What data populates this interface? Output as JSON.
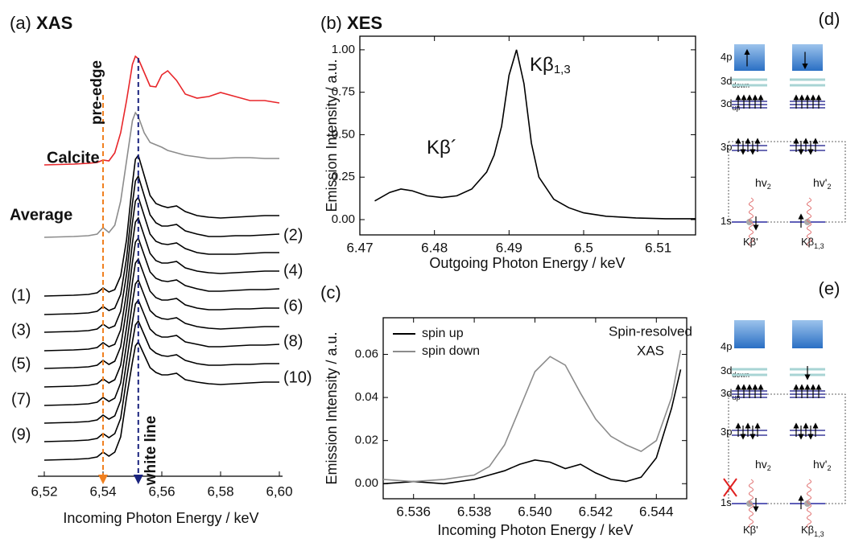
{
  "chart_data": [
    {
      "type": "line",
      "panel_label": "(a)",
      "title": "XAS",
      "xlabel": "Incoming Photon Energy / keV",
      "xlim": [
        6.52,
        6.6
      ],
      "xticks": [
        {
          "value": 6.52,
          "label": "6,52"
        },
        {
          "value": 6.54,
          "label": "6,54"
        },
        {
          "value": 6.56,
          "label": "6,56"
        },
        {
          "value": 6.58,
          "label": "6,58"
        },
        {
          "value": 6.6,
          "label": "6,60"
        }
      ],
      "x": [
        6.52,
        6.53,
        6.535,
        6.538,
        6.54,
        6.542,
        6.544,
        6.546,
        6.548,
        6.55,
        6.551,
        6.552,
        6.554,
        6.556,
        6.558,
        6.56,
        6.562,
        6.565,
        6.568,
        6.572,
        6.576,
        6.58,
        6.585,
        6.59,
        6.595,
        6.6
      ],
      "series": [
        {
          "name": "Calcite",
          "color": "#e8262a",
          "values": [
            0,
            0.01,
            0.02,
            0.03,
            0.06,
            0.05,
            0.15,
            0.4,
            0.8,
            1.25,
            1.35,
            1.32,
            1.15,
            0.98,
            0.97,
            1.12,
            1.17,
            1.05,
            0.88,
            0.83,
            0.85,
            0.9,
            0.85,
            0.8,
            0.8,
            0.77
          ]
        },
        {
          "name": "Average",
          "color": "#8c8c8c",
          "values": [
            0,
            0.01,
            0.02,
            0.04,
            0.12,
            0.06,
            0.15,
            0.45,
            0.95,
            1.45,
            1.55,
            1.5,
            1.3,
            1.18,
            1.15,
            1.12,
            1.08,
            1.05,
            1.02,
            1.0,
            0.98,
            0.98,
            0.99,
            0.99,
            0.98,
            0.98
          ]
        },
        {
          "name": "(1)",
          "color": "#000000",
          "values": [
            0,
            0.01,
            0.02,
            0.04,
            0.1,
            0.05,
            0.08,
            0.25,
            0.7,
            1.4,
            1.7,
            1.75,
            1.5,
            1.25,
            1.15,
            1.12,
            1.1,
            1.12,
            1.05,
            1.0,
            0.98,
            0.97,
            0.98,
            0.99,
            1.0,
            1.0
          ]
        },
        {
          "name": "(2)",
          "color": "#000000",
          "values": [
            0,
            0.01,
            0.02,
            0.04,
            0.1,
            0.05,
            0.08,
            0.25,
            0.7,
            1.38,
            1.66,
            1.72,
            1.48,
            1.24,
            1.14,
            1.1,
            1.1,
            1.12,
            1.04,
            1.0,
            0.97,
            0.97,
            0.98,
            0.98,
            0.99,
            1.0
          ]
        },
        {
          "name": "(3)",
          "color": "#000000",
          "values": [
            0,
            0.01,
            0.02,
            0.04,
            0.1,
            0.05,
            0.08,
            0.26,
            0.72,
            1.36,
            1.63,
            1.68,
            1.45,
            1.22,
            1.13,
            1.1,
            1.09,
            1.11,
            1.04,
            0.99,
            0.97,
            0.97,
            0.97,
            0.98,
            0.99,
            0.99
          ]
        },
        {
          "name": "(4)",
          "color": "#000000",
          "values": [
            0,
            0.01,
            0.02,
            0.04,
            0.1,
            0.05,
            0.08,
            0.26,
            0.72,
            1.34,
            1.6,
            1.65,
            1.43,
            1.21,
            1.12,
            1.09,
            1.09,
            1.11,
            1.03,
            0.99,
            0.97,
            0.96,
            0.97,
            0.98,
            0.99,
            0.99
          ]
        },
        {
          "name": "(5)",
          "color": "#000000",
          "values": [
            0,
            0.01,
            0.02,
            0.04,
            0.1,
            0.05,
            0.09,
            0.27,
            0.74,
            1.32,
            1.57,
            1.62,
            1.41,
            1.2,
            1.12,
            1.09,
            1.08,
            1.1,
            1.03,
            0.99,
            0.96,
            0.96,
            0.97,
            0.98,
            0.98,
            0.99
          ]
        },
        {
          "name": "(6)",
          "color": "#000000",
          "values": [
            0,
            0.01,
            0.02,
            0.04,
            0.1,
            0.05,
            0.09,
            0.27,
            0.74,
            1.3,
            1.54,
            1.59,
            1.39,
            1.19,
            1.11,
            1.08,
            1.08,
            1.1,
            1.02,
            0.98,
            0.96,
            0.96,
            0.97,
            0.97,
            0.98,
            0.98
          ]
        },
        {
          "name": "(7)",
          "color": "#000000",
          "values": [
            0,
            0.01,
            0.02,
            0.04,
            0.1,
            0.05,
            0.09,
            0.28,
            0.76,
            1.28,
            1.51,
            1.56,
            1.37,
            1.18,
            1.11,
            1.08,
            1.07,
            1.09,
            1.02,
            0.98,
            0.96,
            0.95,
            0.96,
            0.97,
            0.98,
            0.98
          ]
        },
        {
          "name": "(8)",
          "color": "#000000",
          "values": [
            0,
            0.01,
            0.02,
            0.04,
            0.1,
            0.05,
            0.09,
            0.28,
            0.76,
            1.26,
            1.48,
            1.53,
            1.35,
            1.17,
            1.1,
            1.07,
            1.07,
            1.09,
            1.01,
            0.98,
            0.95,
            0.95,
            0.96,
            0.97,
            0.97,
            0.98
          ]
        },
        {
          "name": "(9)",
          "color": "#000000",
          "values": [
            0,
            0.01,
            0.02,
            0.04,
            0.1,
            0.05,
            0.1,
            0.29,
            0.78,
            1.24,
            1.45,
            1.5,
            1.33,
            1.16,
            1.1,
            1.07,
            1.06,
            1.08,
            1.01,
            0.97,
            0.95,
            0.95,
            0.96,
            0.96,
            0.97,
            0.97
          ]
        },
        {
          "name": "(10)",
          "color": "#000000",
          "values": [
            0,
            0.01,
            0.02,
            0.04,
            0.1,
            0.05,
            0.1,
            0.29,
            0.78,
            1.22,
            1.42,
            1.47,
            1.31,
            1.15,
            1.09,
            1.06,
            1.06,
            1.08,
            1.0,
            0.97,
            0.95,
            0.94,
            0.95,
            0.96,
            0.97,
            0.97
          ]
        }
      ],
      "annotations": [
        {
          "text": "pre-edge",
          "x": 6.54,
          "color": "#f08020"
        },
        {
          "text": "white line",
          "x": 6.552,
          "color": "#1a237e"
        }
      ]
    },
    {
      "type": "line",
      "panel_label": "(b)",
      "title": "XES",
      "xlabel": "Outgoing Photon Energy / keV",
      "ylabel": "Emission Intensity / a.u.",
      "xlim": [
        6.47,
        6.515
      ],
      "ylim": [
        -0.09,
        1.08
      ],
      "xticks": [
        6.47,
        6.48,
        6.49,
        6.5,
        6.51
      ],
      "yticks": [
        {
          "value": 0,
          "label": "0.00"
        },
        0.25,
        {
          "value": 0.5,
          "label": "0.50"
        },
        0.75,
        {
          "value": 1,
          "label": "1.00"
        }
      ],
      "x": [
        6.472,
        6.474,
        6.4755,
        6.477,
        6.479,
        6.481,
        6.483,
        6.485,
        6.487,
        6.488,
        6.489,
        6.49,
        6.491,
        6.492,
        6.493,
        6.494,
        6.496,
        6.498,
        6.5,
        6.503,
        6.507,
        6.511,
        6.515
      ],
      "series": [
        {
          "color": "#000000",
          "values": [
            0.11,
            0.16,
            0.18,
            0.17,
            0.14,
            0.13,
            0.14,
            0.18,
            0.28,
            0.38,
            0.55,
            0.85,
            1.0,
            0.8,
            0.45,
            0.25,
            0.12,
            0.07,
            0.04,
            0.02,
            0.01,
            0.005,
            0.005
          ]
        }
      ],
      "annotations": [
        {
          "text": "Kβ´"
        },
        {
          "text": "Kβ",
          "sub": "1,3"
        }
      ]
    },
    {
      "type": "line",
      "panel_label": "(c)",
      "xlabel": "Incoming Photon Energy / keV",
      "ylabel": "Emission Intensity / a.u.",
      "xlim": [
        6.535,
        6.545
      ],
      "ylim": [
        -0.007,
        0.077
      ],
      "xticks": [
        6.536,
        6.538,
        {
          "value": 6.54,
          "label": "6.540"
        },
        6.542,
        6.544
      ],
      "yticks": [
        {
          "value": 0,
          "label": "0.00"
        },
        0.02,
        0.04,
        0.06
      ],
      "legend": "upper left",
      "x": [
        6.535,
        6.536,
        6.537,
        6.538,
        6.5385,
        6.539,
        6.5395,
        6.54,
        6.5405,
        6.541,
        6.5415,
        6.542,
        6.5425,
        6.543,
        6.5435,
        6.544,
        6.5445,
        6.5448
      ],
      "series": [
        {
          "name": "spin up",
          "color": "#000000",
          "values": [
            0.0,
            0.001,
            0.0,
            0.002,
            0.004,
            0.006,
            0.009,
            0.011,
            0.01,
            0.007,
            0.009,
            0.005,
            0.002,
            0.001,
            0.003,
            0.012,
            0.035,
            0.053
          ]
        },
        {
          "name": "spin down",
          "color": "#8c8c8c",
          "values": [
            0.002,
            0.001,
            0.002,
            0.004,
            0.008,
            0.018,
            0.035,
            0.052,
            0.059,
            0.055,
            0.042,
            0.03,
            0.022,
            0.018,
            0.015,
            0.02,
            0.04,
            0.062
          ]
        }
      ],
      "annotations": [
        {
          "text": "Spin-resolved"
        },
        {
          "text": "XAS"
        }
      ]
    }
  ],
  "diagrams": [
    {
      "label": "(d)",
      "levels": [
        {
          "text": "4p"
        },
        {
          "text": "3d",
          "sub": "down"
        },
        {
          "text": "3d",
          "sub": "up"
        },
        {
          "text": "3p"
        },
        {
          "text": "1s"
        }
      ],
      "photons": [
        {
          "text": "hv",
          "sub": "2"
        },
        {
          "text": "hv'",
          "sub": "2"
        }
      ],
      "transitions": [
        {
          "text": "Kβ'"
        },
        {
          "text": "Kβ",
          "sub": "1,3"
        }
      ]
    },
    {
      "label": "(e)",
      "levels": [
        {
          "text": "4p"
        },
        {
          "text": "3d",
          "sub": "down"
        },
        {
          "text": "3d",
          "sub": "up"
        },
        {
          "text": "3p"
        },
        {
          "text": "1s"
        }
      ],
      "photons": [
        {
          "text": "hv",
          "sub": "2"
        },
        {
          "text": "hv'",
          "sub": "2"
        }
      ],
      "transitions": [
        {
          "text": "Kβ'"
        },
        {
          "text": "Kβ",
          "sub": "1,3"
        }
      ]
    }
  ]
}
